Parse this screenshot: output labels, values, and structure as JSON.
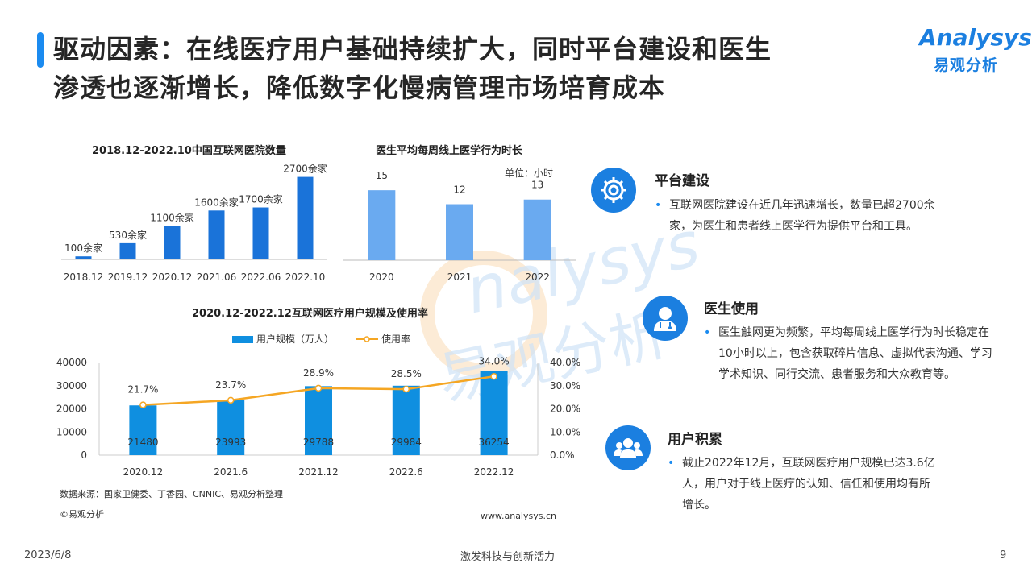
{
  "title": {
    "line1": "驱动因素：在线医疗用户基础持续扩大，同时平台建设和医生",
    "line2": "渗透也逐渐增长，降低数字化慢病管理市场培育成本"
  },
  "logo": {
    "brand": "Analysys",
    "brand_cn": "易观分析"
  },
  "watermark": {
    "text_en": "nalysys",
    "text_cn": "易观分析"
  },
  "chart_data": [
    {
      "type": "bar",
      "title": "2018.12-2022.10中国互联网医院数量",
      "categories": [
        "2018.12",
        "2019.12",
        "2020.12",
        "2021.06",
        "2022.06",
        "2022.10"
      ],
      "values": [
        100,
        530,
        1100,
        1600,
        1700,
        2700
      ],
      "value_labels": [
        "100余家",
        "530余家",
        "1100余家",
        "1600余家",
        "1700余家",
        "2700余家"
      ],
      "ylim": [
        0,
        2900
      ],
      "color": "#1a73d9"
    },
    {
      "type": "bar",
      "title": "医生平均每周线上医学行为时长",
      "unit": "单位：小时",
      "categories": [
        "2020",
        "2021",
        "2022"
      ],
      "values": [
        15,
        12,
        13
      ],
      "value_labels": [
        "15",
        "12",
        "13"
      ],
      "ylim": [
        0,
        19
      ],
      "color": "#6aaaf0"
    },
    {
      "type": "bar",
      "title": "2020.12-2022.12互联网医疗用户规模及使用率",
      "categories": [
        "2020.12",
        "2021.6",
        "2021.12",
        "2022.6",
        "2022.12"
      ],
      "series": [
        {
          "name": "用户规模（万人）",
          "type": "bar",
          "values": [
            21480,
            23993,
            29788,
            29984,
            36254
          ],
          "color": "#0f8fe0"
        },
        {
          "name": "使用率",
          "type": "line",
          "values": [
            21.7,
            23.7,
            28.9,
            28.5,
            34.0
          ],
          "labels": [
            "21.7%",
            "23.7%",
            "28.9%",
            "28.5%",
            "34.0%"
          ],
          "color": "#f5a623"
        }
      ],
      "y_left": {
        "ylim": [
          0,
          40000
        ],
        "ticks": [
          "0",
          "10000",
          "20000",
          "30000",
          "40000"
        ]
      },
      "y_right": {
        "ylim": [
          0,
          40
        ],
        "ticks": [
          "0.0%",
          "10.0%",
          "20.0%",
          "30.0%",
          "40.0%"
        ]
      },
      "legend": "top"
    }
  ],
  "source": "数据来源：国家卫健委、丁香园、CNNIC、易观分析整理",
  "copyright": "©易观分析",
  "website": "www.analysys.cn",
  "sections": [
    {
      "heading": "平台建设",
      "icon": "gear-icon",
      "text": "互联网医院建设在近几年迅速增长，数量已超2700余家，为医生和患者线上医学行为提供平台和工具。"
    },
    {
      "heading": "医生使用",
      "icon": "doctor-icon",
      "text": "医生触网更为频繁，平均每周线上医学行为时长稳定在10小时以上，包含获取碎片信息、虚拟代表沟通、学习学术知识、同行交流、患者服务和大众教育等。"
    },
    {
      "heading": "用户积累",
      "icon": "users-icon",
      "text": "截止2022年12月，互联网医疗用户规模已达3.6亿人，用户对于线上医疗的认知、信任和使用均有所增长。"
    }
  ],
  "footer": {
    "date": "2023/6/8",
    "slogan": "激发科技与创新活力",
    "page": "9"
  }
}
